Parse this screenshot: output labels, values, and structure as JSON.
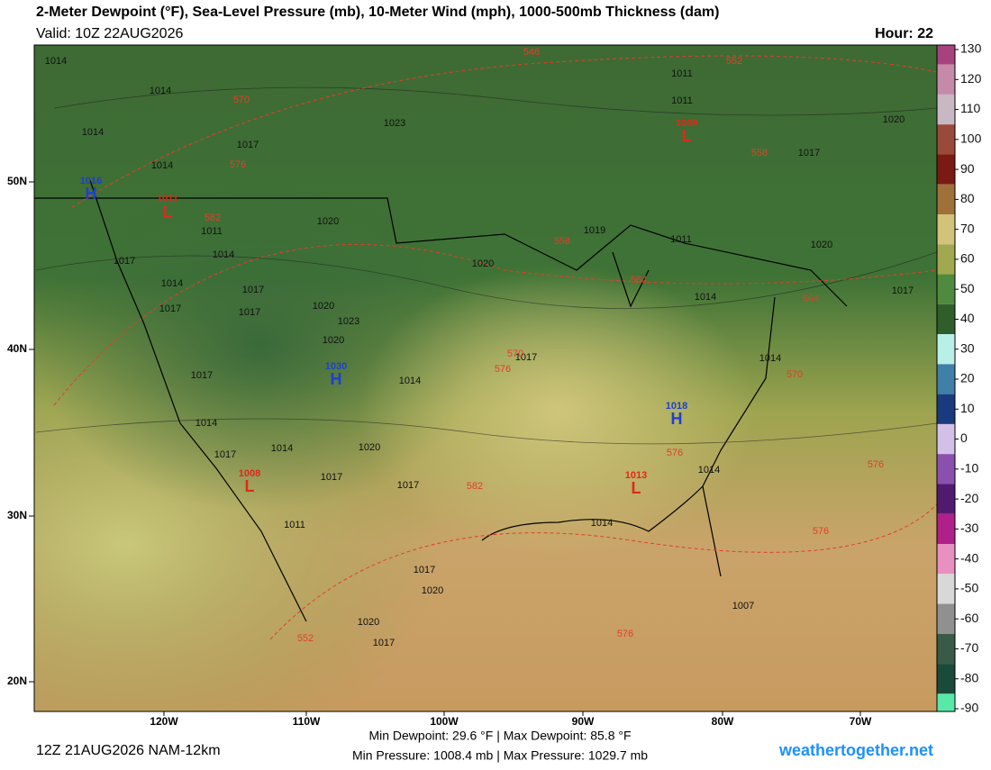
{
  "header": {
    "title": "2-Meter Dewpoint (°F), Sea-Level Pressure (mb), 10-Meter Wind (mph), 1000-500mb Thickness (dam)",
    "valid": "Valid: 10Z 22AUG2026",
    "hour": "Hour: 22"
  },
  "map": {
    "lat_labels": [
      "50N",
      "40N",
      "30N",
      "20N"
    ],
    "lon_labels": [
      "120W",
      "110W",
      "100W",
      "90W",
      "80W",
      "70W"
    ],
    "pressure_labels": [
      "1014",
      "1014",
      "1014",
      "1017",
      "1014",
      "1023",
      "1011",
      "1011",
      "1020",
      "1017",
      "1011",
      "1014",
      "1020",
      "1017",
      "1014",
      "1017",
      "1017",
      "1017",
      "1020",
      "1023",
      "1020",
      "1017",
      "1014",
      "1014",
      "1014",
      "1020",
      "1017",
      "1017",
      "1017",
      "1017",
      "1020",
      "1011",
      "1014",
      "1017",
      "1020",
      "1014",
      "1014",
      "1011",
      "1014",
      "1017",
      "1020",
      "1020",
      "1017",
      "1007",
      "1019"
    ],
    "thickness_labels": [
      "546",
      "552",
      "570",
      "576",
      "558",
      "582",
      "558",
      "564",
      "564",
      "570",
      "576",
      "570",
      "576",
      "582",
      "576",
      "576",
      "576",
      "552"
    ],
    "centers": [
      {
        "letter": "H",
        "value": "1016"
      },
      {
        "letter": "L",
        "value": "1011"
      },
      {
        "letter": "L",
        "value": "1009"
      },
      {
        "letter": "H",
        "value": "1030"
      },
      {
        "letter": "H",
        "value": "1018"
      },
      {
        "letter": "L",
        "value": "1008"
      },
      {
        "letter": "L",
        "value": "1013"
      }
    ]
  },
  "colorbar": {
    "ticks": [
      130,
      120,
      110,
      100,
      90,
      80,
      70,
      60,
      50,
      40,
      30,
      20,
      10,
      0,
      -10,
      -20,
      -30,
      -40,
      -50,
      -60,
      -70,
      -80,
      -90
    ],
    "colors": [
      "#a8427f",
      "#c58aa8",
      "#c8b8c4",
      "#9a4a3a",
      "#7a1a12",
      "#a0703a",
      "#d2c27a",
      "#a2a850",
      "#4f8a3e",
      "#2f5e2a",
      "#b8f0e8",
      "#3f7fa8",
      "#1a3a80",
      "#d2c0e8",
      "#8a50b0",
      "#501a70",
      "#b0208a",
      "#e890c0",
      "#d8d8d8",
      "#909090",
      "#3a5a48",
      "#1a4a3a",
      "#58e8a8"
    ]
  },
  "footer": {
    "run": "12Z 21AUG2026 NAM-12km",
    "dewpoint_stats": "Min Dewpoint: 29.6 °F | Max Dewpoint: 85.8 °F",
    "pressure_stats": "Min Pressure: 1008.4 mb | Max Pressure: 1029.7 mb",
    "site": "weathertogether.net"
  }
}
